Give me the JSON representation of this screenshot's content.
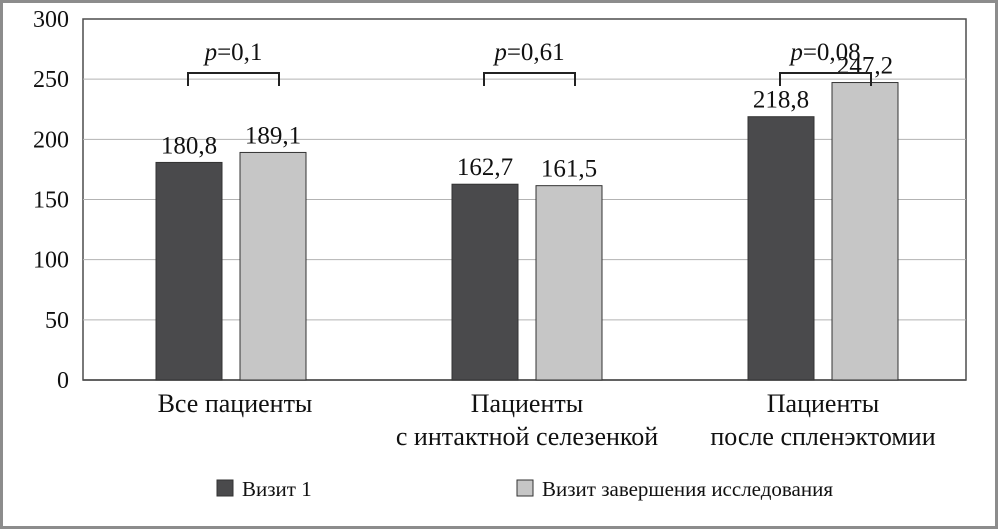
{
  "chart_data": {
    "type": "bar",
    "categories": [
      [
        "Все пациенты"
      ],
      [
        "Пациенты",
        "с интактной селезенкой"
      ],
      [
        "Пациенты",
        "после спленэктомии"
      ]
    ],
    "series": [
      {
        "name": "Визит 1",
        "values": [
          180.8,
          162.7,
          218.8
        ],
        "labels": [
          "180,8",
          "162,7",
          "218,8"
        ],
        "color": "#4a4a4c"
      },
      {
        "name": "Визит завершения исследования",
        "values": [
          189.1,
          161.5,
          247.2
        ],
        "labels": [
          "189,1",
          "161,5",
          "247,2"
        ],
        "color": "#c6c6c6"
      }
    ],
    "p_values": [
      "=0,1",
      "=0,61",
      "=0,08"
    ],
    "p_symbol": "p",
    "ylim": [
      0,
      300
    ],
    "yticks": [
      0,
      50,
      100,
      150,
      200,
      250,
      300
    ],
    "grid": true,
    "legend_position": "bottom",
    "title": "",
    "xlabel": "",
    "ylabel": ""
  }
}
